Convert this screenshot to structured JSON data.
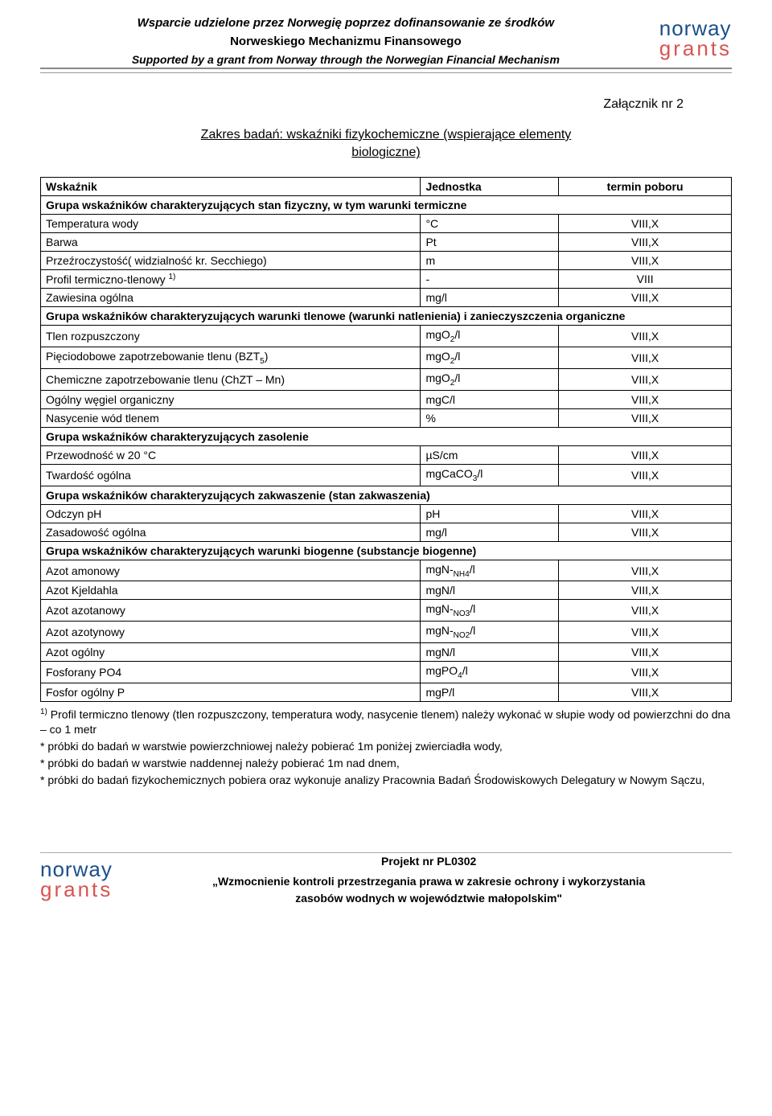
{
  "header": {
    "line1": "Wsparcie udzielone przez Norwegię poprzez dofinansowanie ze środków",
    "line2": "Norweskiego Mechanizmu Finansowego",
    "line3": "Supported by a grant from Norway through the Norwegian Financial Mechanism"
  },
  "logo": {
    "word1": "norway",
    "word2": "grants"
  },
  "attachment": "Załącznik nr 2",
  "section_title_line1": "Zakres badań: wskaźniki fizykochemiczne (wspierające elementy",
  "section_title_line2": "biologiczne)",
  "columns": {
    "c1": "Wskaźnik",
    "c2": "Jednostka",
    "c3": "termin poboru"
  },
  "groups": [
    {
      "title": "Grupa wskaźników charakteryzujących stan fizyczny, w tym warunki termiczne",
      "rows": [
        {
          "name": "Temperatura wody",
          "unit": "°C",
          "term": "VIII,X"
        },
        {
          "name": "Barwa",
          "unit": "Pt",
          "term": "VIII,X"
        },
        {
          "name": "Przeźroczystość( widzialność kr. Secchiego)",
          "unit": "m",
          "term": "VIII,X"
        },
        {
          "name_html": "Profil termiczno-tlenowy <span class='sup'>1)</span>",
          "unit": "-",
          "term": "VIII"
        },
        {
          "name": "Zawiesina ogólna",
          "unit": "mg/l",
          "term": "VIII,X"
        }
      ]
    },
    {
      "title": "Grupa wskaźników charakteryzujących warunki tlenowe (warunki natlenienia) i zanieczyszczenia organiczne",
      "rows": [
        {
          "name": "Tlen rozpuszczony",
          "unit_html": "mgO<span class='sub'>2</span>/l",
          "term": "VIII,X"
        },
        {
          "name_html": "Pięciodobowe zapotrzebowanie tlenu (BZT<span class='sub'>5</span>)",
          "unit_html": "mgO<span class='sub'>2</span>/l",
          "term": "VIII,X"
        },
        {
          "name": "Chemiczne zapotrzebowanie tlenu (ChZT – Mn)",
          "unit_html": "mgO<span class='sub'>2</span>/l",
          "term": "VIII,X"
        },
        {
          "name": "Ogólny węgiel organiczny",
          "unit": "mgC/l",
          "term": "VIII,X"
        },
        {
          "name": "Nasycenie wód tlenem",
          "unit": "%",
          "term": "VIII,X"
        }
      ]
    },
    {
      "title": "Grupa wskaźników charakteryzujących zasolenie",
      "rows": [
        {
          "name": "Przewodność w 20 °C",
          "unit": "µS/cm",
          "term": "VIII,X"
        },
        {
          "name": "Twardość ogólna",
          "unit_html": "mgCaCO<span class='sub'>3</span>/l",
          "term": "VIII,X"
        }
      ]
    },
    {
      "title": "Grupa wskaźników charakteryzujących zakwaszenie (stan zakwaszenia)",
      "rows": [
        {
          "name": "Odczyn pH",
          "unit": "pH",
          "term": "VIII,X"
        },
        {
          "name": "Zasadowość ogólna",
          "unit": "mg/l",
          "term": "VIII,X"
        }
      ]
    },
    {
      "title": "Grupa wskaźników charakteryzujących warunki biogenne (substancje biogenne)",
      "rows": [
        {
          "name": "Azot amonowy",
          "unit_html": "mgN-<span class='sub'>NH4</span>/l",
          "term": "VIII,X"
        },
        {
          "name": "Azot Kjeldahla",
          "unit": "mgN/l",
          "term": "VIII,X"
        },
        {
          "name": "Azot azotanowy",
          "unit_html": "mgN-<span class='sub'>NO3</span>/l",
          "term": "VIII,X"
        },
        {
          "name": "Azot azotynowy",
          "unit_html": "mgN-<span class='sub'>NO2</span>/l",
          "term": "VIII,X"
        },
        {
          "name": "Azot ogólny",
          "unit": "mgN/l",
          "term": "VIII,X"
        },
        {
          "name": "Fosforany PO4",
          "unit_html": "mgPO<span class='sub'>4</span>/l",
          "term": "VIII,X"
        },
        {
          "name": "Fosfor ogólny P",
          "unit": "mgP/l",
          "term": "VIII,X"
        }
      ]
    }
  ],
  "footnotes": [
    "1) Profil termiczno tlenowy (tlen rozpuszczony, temperatura wody, nasycenie tlenem) należy wykonać w słupie wody od powierzchni do dna – co 1 metr",
    "* próbki do badań w warstwie powierzchniowej należy pobierać 1m poniżej zwierciadła wody,",
    "* próbki do badań w warstwie naddennej należy pobierać 1m nad dnem,",
    "* próbki do badań fizykochemicznych pobiera oraz wykonuje analizy Pracownia Badań Środowiskowych Delegatury w Nowym Sączu,"
  ],
  "footer": {
    "project": "Projekt nr PL0302",
    "quote1": "„Wzmocnienie kontroli przestrzegania prawa w zakresie ochrony i wykorzystania",
    "quote2": "zasobów wodnych w województwie małopolskim\""
  },
  "colors": {
    "logo_blue": "#1a4f8a",
    "logo_red": "#d9534f",
    "border": "#000000",
    "divider": "#888888"
  }
}
